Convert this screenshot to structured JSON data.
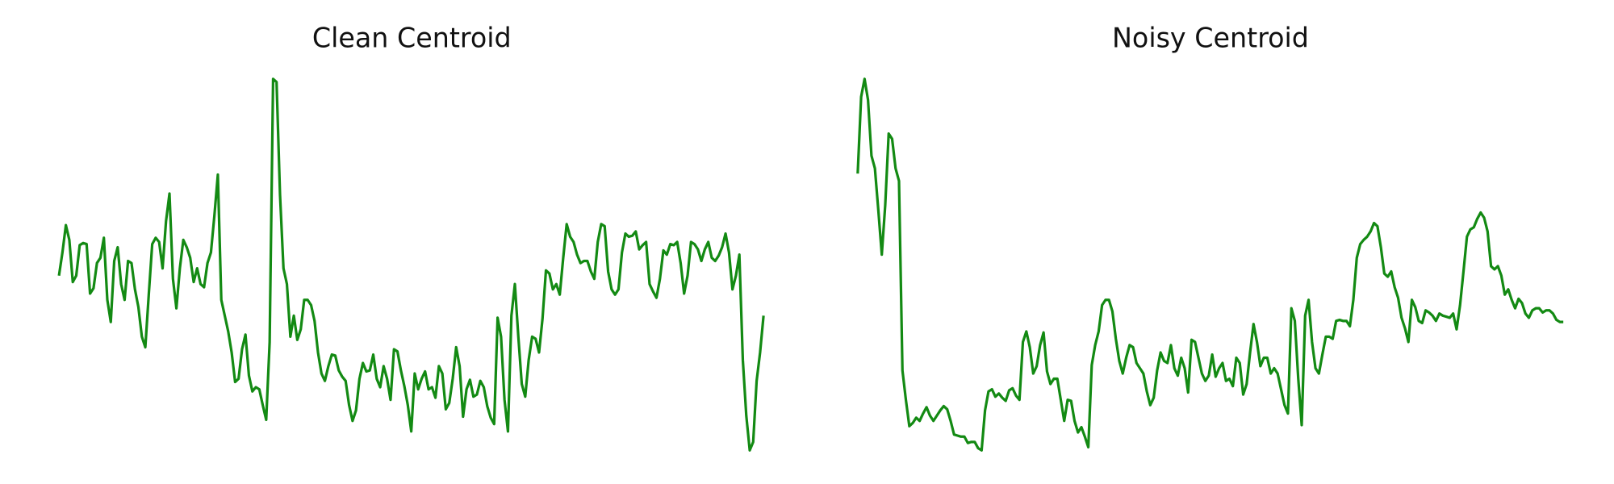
{
  "chart_data": [
    {
      "type": "line",
      "title": "Clean Centroid",
      "color": "#138a13",
      "ylim": [
        0,
        450
      ],
      "values": [
        188,
        210,
        236,
        222,
        182,
        188,
        217,
        219,
        218,
        171,
        176,
        200,
        205,
        224,
        165,
        144,
        202,
        215,
        180,
        165,
        202,
        200,
        175,
        158,
        130,
        120,
        170,
        218,
        224,
        220,
        195,
        240,
        266,
        185,
        157,
        195,
        222,
        215,
        205,
        182,
        195,
        180,
        177,
        200,
        210,
        245,
        284,
        165,
        150,
        135,
        115,
        87,
        90,
        118,
        132,
        93,
        78,
        82,
        80,
        65,
        51,
        125,
        375,
        372,
        265,
        195,
        180,
        130,
        150,
        127,
        137,
        165,
        165,
        160,
        145,
        115,
        95,
        88,
        102,
        113,
        112,
        98,
        92,
        88,
        65,
        50,
        60,
        90,
        105,
        97,
        98,
        113,
        90,
        82,
        102,
        90,
        70,
        118,
        116,
        98,
        83,
        65,
        40,
        95,
        80,
        90,
        97,
        80,
        82,
        72,
        102,
        95,
        61,
        67,
        90,
        120,
        102,
        54,
        80,
        89,
        73,
        75,
        88,
        82,
        64,
        53,
        47,
        148,
        130,
        70,
        40,
        150,
        180,
        130,
        85,
        73,
        108,
        130,
        128,
        115,
        147,
        193,
        190,
        175,
        180,
        170,
        205,
        237,
        225,
        220,
        208,
        200,
        202,
        202,
        192,
        185,
        220,
        237,
        235,
        192,
        175,
        170,
        175,
        210,
        228,
        225,
        226,
        230,
        213,
        217,
        220,
        180,
        173,
        167,
        185,
        212,
        208,
        218,
        217,
        220,
        200,
        171,
        188,
        220,
        218,
        213,
        202,
        213,
        220,
        205,
        202,
        207,
        215,
        228,
        210,
        175,
        188,
        208,
        108,
        55,
        22,
        30,
        88,
        115,
        150
      ]
    },
    {
      "type": "line",
      "title": "Noisy Centroid",
      "color": "#138a13",
      "ylim": [
        0,
        450
      ],
      "values": [
        285,
        358,
        375,
        355,
        302,
        290,
        250,
        208,
        255,
        323,
        318,
        290,
        278,
        98,
        70,
        45,
        48,
        53,
        50,
        57,
        63,
        55,
        50,
        55,
        60,
        64,
        61,
        50,
        37,
        36,
        35,
        35,
        29,
        30,
        30,
        24,
        22,
        60,
        78,
        80,
        73,
        76,
        72,
        69,
        79,
        81,
        74,
        70,
        125,
        135,
        120,
        95,
        102,
        122,
        134,
        97,
        85,
        90,
        90,
        70,
        50,
        70,
        69,
        50,
        39,
        44,
        35,
        25,
        103,
        122,
        135,
        160,
        165,
        165,
        154,
        128,
        107,
        95,
        110,
        122,
        120,
        105,
        100,
        95,
        78,
        65,
        72,
        98,
        115,
        107,
        105,
        122,
        100,
        93,
        110,
        100,
        77,
        127,
        125,
        110,
        95,
        88,
        93,
        113,
        92,
        100,
        105,
        88,
        90,
        83,
        110,
        105,
        75,
        85,
        115,
        142,
        125,
        102,
        110,
        110,
        95,
        100,
        95,
        80,
        65,
        57,
        157,
        145,
        90,
        46,
        150,
        165,
        125,
        100,
        95,
        113,
        130,
        130,
        128,
        145,
        146,
        145,
        145,
        140,
        165,
        205,
        218,
        222,
        225,
        230,
        238,
        235,
        215,
        190,
        187,
        192,
        177,
        167,
        148,
        138,
        125,
        165,
        158,
        145,
        143,
        155,
        153,
        150,
        145,
        152,
        150,
        149,
        148,
        152,
        137,
        160,
        192,
        225,
        232,
        234,
        242,
        248,
        243,
        230,
        197,
        194,
        197,
        188,
        170,
        175,
        165,
        157,
        166,
        162,
        152,
        148,
        155,
        157,
        157,
        153,
        155,
        155,
        152,
        146,
        144,
        144
      ]
    }
  ]
}
